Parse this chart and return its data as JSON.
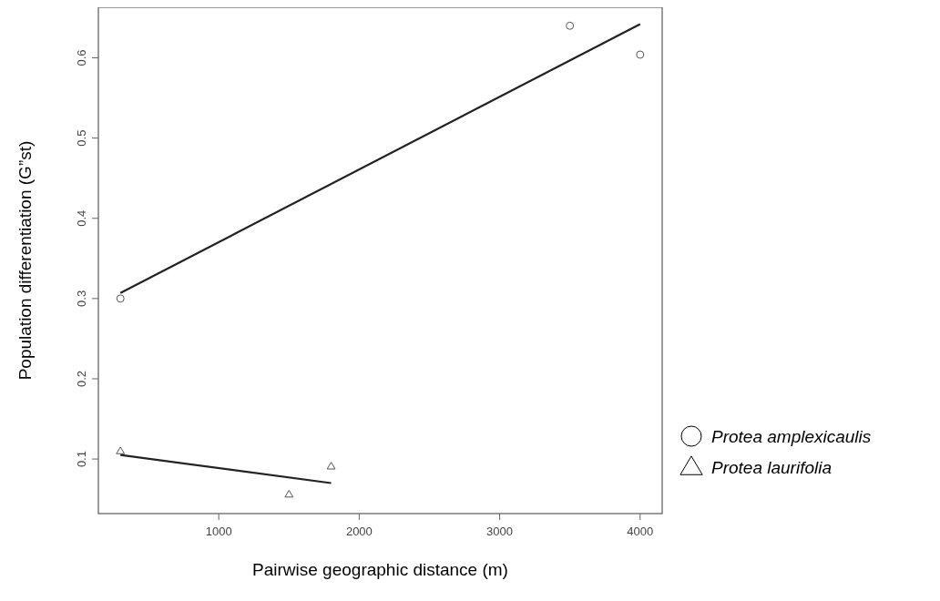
{
  "chart_data": {
    "type": "scatter",
    "xlabel": "Pairwise geographic distance (m)",
    "ylabel": "Population differentiation (G”st)",
    "xlim": [
      143,
      4157
    ],
    "xticks": [
      1000,
      2000,
      3000,
      4000
    ],
    "ylim": [
      0.032,
      0.663
    ],
    "yticks": [
      0.1,
      0.2,
      0.3,
      0.4,
      0.5,
      0.6
    ],
    "grid": false,
    "legend": "bottom right",
    "series": [
      {
        "name": "Protea amplexicaulis",
        "marker": "circle",
        "color": "#555555",
        "x": [
          300,
          3500,
          4000
        ],
        "values": [
          0.3,
          0.64,
          0.604
        ]
      },
      {
        "name": "Protea laurifolia",
        "marker": "triangle",
        "color": "#555555",
        "x": [
          300,
          1500,
          1800
        ],
        "values": [
          0.11,
          0.056,
          0.091
        ]
      },
      {
        "type": "line",
        "marker": "none",
        "color": "#222222",
        "x": [
          300,
          4000
        ],
        "values": [
          0.307,
          0.642
        ]
      },
      {
        "type": "line",
        "marker": "none",
        "color": "#222222",
        "x": [
          300,
          1800
        ],
        "values": [
          0.105,
          0.07
        ]
      }
    ]
  }
}
